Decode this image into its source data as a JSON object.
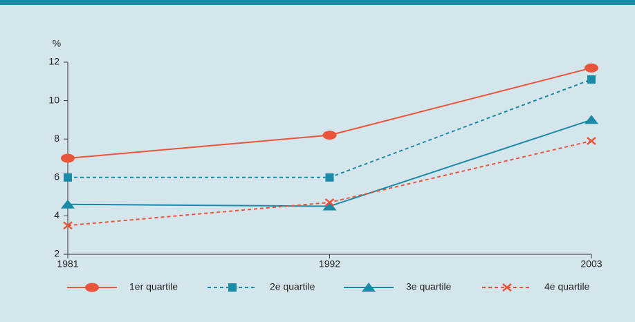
{
  "chart_data": {
    "type": "line",
    "y_label": "%",
    "x": [
      1981,
      1992,
      2003
    ],
    "xlim": [
      1981,
      2003
    ],
    "xticks": [
      1981,
      1992,
      2003
    ],
    "ylim": [
      2,
      12
    ],
    "yticks": [
      2,
      4,
      6,
      8,
      10,
      12
    ],
    "series": [
      {
        "name": "1er quartile",
        "color": "#e8553a",
        "dash": false,
        "marker": "circle",
        "values": [
          7.0,
          8.2,
          11.7
        ]
      },
      {
        "name": "2e quartile",
        "color": "#1b8aa6",
        "dash": true,
        "marker": "square",
        "values": [
          6.0,
          6.0,
          11.1
        ]
      },
      {
        "name": "3e quartile",
        "color": "#1b8aa6",
        "dash": false,
        "marker": "triangle",
        "values": [
          4.6,
          4.5,
          9.0
        ]
      },
      {
        "name": "4e quartile",
        "color": "#e8553a",
        "dash": true,
        "marker": "cross",
        "values": [
          3.5,
          4.7,
          7.9
        ]
      }
    ]
  }
}
